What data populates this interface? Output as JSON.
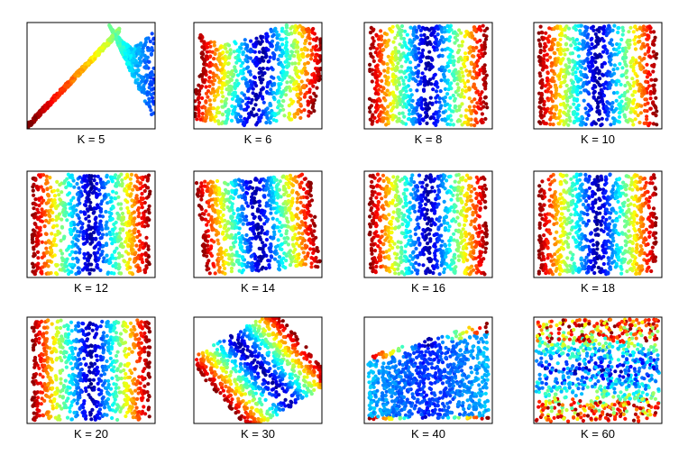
{
  "chart_data": {
    "type": "scatter",
    "colormap": "jet",
    "points_per_panel": 900,
    "panels": [
      {
        "label": "K = 5",
        "pattern": "fold-curve"
      },
      {
        "label": "K = 6",
        "pattern": "vertical-bands-distorted"
      },
      {
        "label": "K = 8",
        "pattern": "vertical-bands"
      },
      {
        "label": "K = 10",
        "pattern": "vertical-bands"
      },
      {
        "label": "K = 12",
        "pattern": "vertical-bands"
      },
      {
        "label": "K = 14",
        "pattern": "vertical-bands-rotated"
      },
      {
        "label": "K = 16",
        "pattern": "vertical-bands"
      },
      {
        "label": "K = 18",
        "pattern": "vertical-bands"
      },
      {
        "label": "K = 20",
        "pattern": "vertical-bands"
      },
      {
        "label": "K = 30",
        "pattern": "rotated-square"
      },
      {
        "label": "K = 40",
        "pattern": "collapsed-wedge"
      },
      {
        "label": "K = 60",
        "pattern": "horizontal-mixed"
      }
    ]
  },
  "colors": {
    "jet": [
      "#00008f",
      "#0000ff",
      "#00ffff",
      "#ffff00",
      "#ff0000",
      "#800000"
    ],
    "frame": "#000000",
    "background": "#ffffff"
  }
}
